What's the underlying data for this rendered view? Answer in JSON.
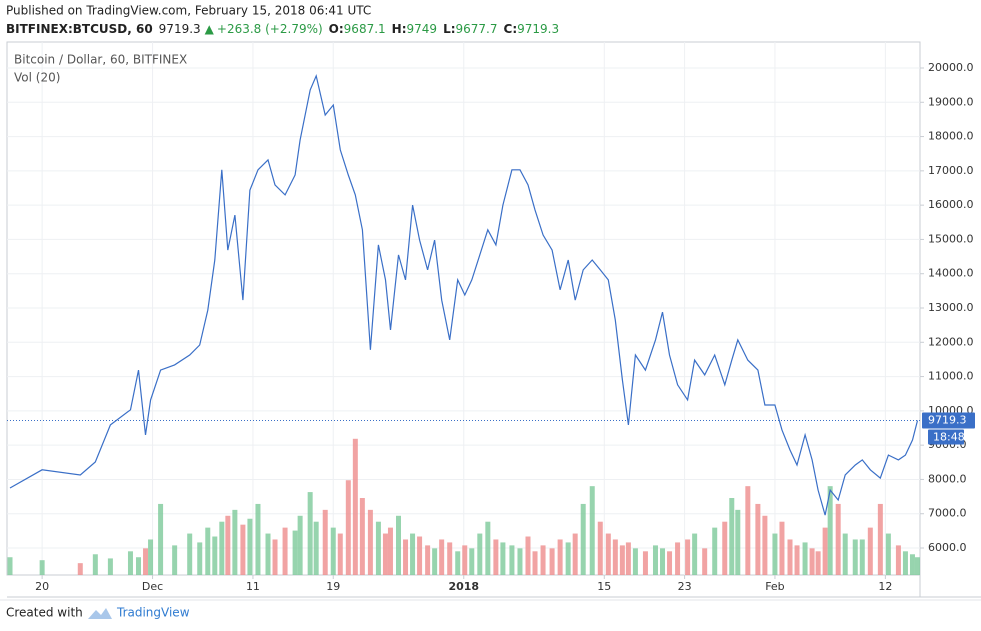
{
  "header": {
    "published": "Published on TradingView.com, February 15, 2018 06:41 UTC",
    "symbol": "BITFINEX:BTCUSD, 60",
    "price": 9719.3,
    "change": "+263.8 (+2.79%)",
    "ohlc": [
      {
        "label": "O:",
        "value": 9687.1
      },
      {
        "label": "H:",
        "value": 9749.0
      },
      {
        "label": "L:",
        "value": 9677.7
      },
      {
        "label": "C:",
        "value": 9719.3
      }
    ]
  },
  "chart_data": {
    "type": "line",
    "series": [
      {
        "name": "Bitcoin / Dollar, 60, BITFINEX",
        "color": "#3a6fc7",
        "x": [
          16.8,
          20,
          23.8,
          25.3,
          26.8,
          28.8,
          29.6,
          30.3,
          30.8,
          31.8,
          33.2,
          34.7,
          35.7,
          36.5,
          37.2,
          37.9,
          38.5,
          39.2,
          40.0,
          40.7,
          41.5,
          42.5,
          43.2,
          44.2,
          45.2,
          45.7,
          46.7,
          47.3,
          48.2,
          49.0,
          49.7,
          50.5,
          51.2,
          51.9,
          52.7,
          53.5,
          54.2,
          54.7,
          55.5,
          56.2,
          56.9,
          57.6,
          58.4,
          59.1,
          59.8,
          60.6,
          61.4,
          62.1,
          62.8,
          63.6,
          64.4,
          65.2,
          65.9,
          66.8,
          67.6,
          68.4,
          69.1,
          69.9,
          70.8,
          71.6,
          72.4,
          73.1,
          73.9,
          74.8,
          75.6,
          76.4,
          77.1,
          77.8,
          78.4,
          79.1,
          80.1,
          81.1,
          81.8,
          82.5,
          83.3,
          84.3,
          85.0,
          86.0,
          87.0,
          88.0,
          88.7,
          89.3,
          90.3,
          91.3,
          92.0,
          93.0,
          93.7,
          94.5,
          95.2,
          96.0,
          96.7,
          97.3,
          98.0,
          98.5,
          99.3,
          100.0,
          101.0,
          101.7,
          102.5,
          103.5,
          104.3,
          105.3,
          106.0,
          106.7,
          107.2
        ],
        "values": [
          7750,
          8280,
          8130,
          8510,
          9590,
          10030,
          11190,
          9300,
          10320,
          11190,
          11340,
          11630,
          11920,
          12940,
          14400,
          17030,
          14690,
          15710,
          13230,
          16440,
          17030,
          17320,
          16590,
          16300,
          16880,
          17900,
          19360,
          19770,
          18630,
          18920,
          17610,
          16880,
          16300,
          15280,
          11780,
          14840,
          13820,
          12360,
          14550,
          13820,
          16000,
          14980,
          14110,
          14980,
          13230,
          12070,
          13820,
          13380,
          13820,
          14550,
          15280,
          14840,
          16000,
          17030,
          17030,
          16590,
          15860,
          15130,
          14690,
          13530,
          14400,
          13230,
          14110,
          14400,
          14110,
          13820,
          12650,
          10900,
          9590,
          11630,
          11190,
          12070,
          12880,
          11630,
          10760,
          10320,
          11480,
          11050,
          11630,
          10760,
          11480,
          12070,
          11480,
          11190,
          10170,
          10170,
          9440,
          8860,
          8420,
          9300,
          8570,
          7690,
          6960,
          7690,
          7400,
          8130,
          8420,
          8570,
          8280,
          8040,
          8710,
          8570,
          8710,
          9150,
          9719.3
        ]
      }
    ],
    "volume": {
      "name": "Vol (20)",
      "up_color": "#7dc99a",
      "down_color": "#ee8c8c",
      "ylim": [
        0,
        900
      ],
      "values": [
        30,
        25,
        20,
        35,
        28,
        40,
        30,
        45,
        60,
        120,
        50,
        70,
        55,
        80,
        65,
        90,
        100,
        110,
        85,
        95,
        120,
        70,
        60,
        80,
        75,
        100,
        140,
        90,
        110,
        80,
        70,
        160,
        230,
        130,
        110,
        90,
        70,
        80,
        100,
        60,
        70,
        65,
        50,
        45,
        60,
        55,
        40,
        50,
        45,
        70,
        90,
        60,
        55,
        50,
        45,
        65,
        40,
        50,
        45,
        60,
        55,
        70,
        120,
        150,
        90,
        70,
        60,
        50,
        55,
        45,
        40,
        50,
        45,
        40,
        55,
        60,
        70,
        45,
        80,
        90,
        130,
        110,
        150,
        120,
        100,
        70,
        90,
        60,
        50,
        55,
        45,
        40,
        80,
        150,
        120,
        70,
        60,
        60,
        80,
        120,
        70,
        50,
        40,
        35,
        30
      ]
    },
    "last_price": 9719.3,
    "countdown": "18:48",
    "xlim": [
      16.5,
      107.45
    ],
    "xticks": [
      {
        "value": 20,
        "label": "20"
      },
      {
        "value": 31,
        "label": "Dec"
      },
      {
        "value": 41,
        "label": "11"
      },
      {
        "value": 49,
        "label": "19"
      },
      {
        "value": 62,
        "label": "2018"
      },
      {
        "value": 76,
        "label": "15"
      },
      {
        "value": 84,
        "label": "23"
      },
      {
        "value": 93,
        "label": "Feb"
      },
      {
        "value": 104,
        "label": "12"
      }
    ],
    "ylim": [
      5213,
      20758
    ],
    "yticks": [
      {
        "value": 6000,
        "label": "6000.0"
      },
      {
        "value": 7000,
        "label": "7000.0"
      },
      {
        "value": 8000,
        "label": "8000.0"
      },
      {
        "value": 9000,
        "label": "9000.0"
      },
      {
        "value": 10000,
        "label": "10000.0"
      },
      {
        "value": 11000,
        "label": "11000.0"
      },
      {
        "value": 12000,
        "label": "12000.0"
      },
      {
        "value": 13000,
        "label": "13000.0"
      },
      {
        "value": 14000,
        "label": "14000.0"
      },
      {
        "value": 15000,
        "label": "15000.0"
      },
      {
        "value": 16000,
        "label": "16000.0"
      },
      {
        "value": 17000,
        "label": "17000.0"
      },
      {
        "value": 18000,
        "label": "18000.0"
      },
      {
        "value": 19000,
        "label": "19000.0"
      },
      {
        "value": 20000,
        "label": "20000.0"
      }
    ],
    "grid": true
  },
  "footer": {
    "created_with": "Created with",
    "brand": "TradingView"
  }
}
